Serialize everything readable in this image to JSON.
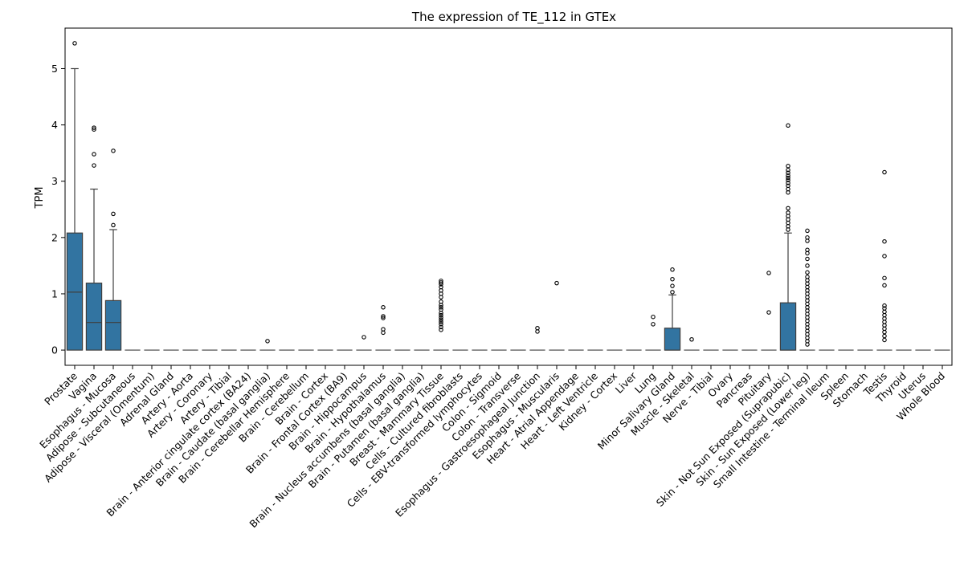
{
  "chart_data": {
    "type": "box",
    "title": "The expression of TE_112 in GTEx",
    "xlabel": "",
    "ylabel": "TPM",
    "ylim": [
      -0.27,
      5.72
    ],
    "yticks": [
      0,
      1,
      2,
      3,
      4,
      5
    ],
    "grid": false,
    "legend": "none",
    "box_color": "#3274a1",
    "categories": [
      "Prostate",
      "Vagina",
      "Esophagus - Mucosa",
      "Adipose - Subcutaneous",
      "Adipose - Visceral (Omentum)",
      "Adrenal Gland",
      "Artery - Aorta",
      "Artery - Coronary",
      "Artery - Tibial",
      "Brain - Anterior cingulate cortex (BA24)",
      "Brain - Caudate (basal ganglia)",
      "Brain - Cerebellar Hemisphere",
      "Brain - Cerebellum",
      "Brain - Cortex",
      "Brain - Frontal Cortex (BA9)",
      "Brain - Hippocampus",
      "Brain - Hypothalamus",
      "Brain - Nucleus accumbens (basal ganglia)",
      "Brain - Putamen (basal ganglia)",
      "Breast - Mammary Tissue",
      "Cells - Cultured fibroblasts",
      "Cells - EBV-transformed lymphocytes",
      "Colon - Sigmoid",
      "Colon - Transverse",
      "Esophagus - Gastroesophageal Junction",
      "Esophagus - Muscularis",
      "Heart - Atrial Appendage",
      "Heart - Left Ventricle",
      "Kidney - Cortex",
      "Liver",
      "Lung",
      "Minor Salivary Gland",
      "Muscle - Skeletal",
      "Nerve - Tibial",
      "Ovary",
      "Pancreas",
      "Pituitary",
      "Skin - Not Sun Exposed (Suprapubic)",
      "Skin - Sun Exposed (Lower leg)",
      "Small Intestine - Terminal Ileum",
      "Spleen",
      "Stomach",
      "Testis",
      "Thyroid",
      "Uterus",
      "Whole Blood"
    ],
    "boxes": [
      {
        "q1": 0,
        "median": 1.03,
        "q3": 2.08,
        "wlo": 0,
        "whi": 5.0,
        "outliers": [
          5.45
        ]
      },
      {
        "q1": 0,
        "median": 0.49,
        "q3": 1.19,
        "wlo": 0,
        "whi": 2.86,
        "outliers": [
          3.28,
          3.48,
          3.92,
          3.95
        ]
      },
      {
        "q1": 0,
        "median": 0.49,
        "q3": 0.88,
        "wlo": 0,
        "whi": 2.14,
        "outliers": [
          2.22,
          2.42,
          3.54
        ]
      },
      {
        "q1": 0,
        "median": 0,
        "q3": 0,
        "wlo": 0,
        "whi": 0,
        "outliers": []
      },
      {
        "q1": 0,
        "median": 0,
        "q3": 0,
        "wlo": 0,
        "whi": 0,
        "outliers": []
      },
      {
        "q1": 0,
        "median": 0,
        "q3": 0,
        "wlo": 0,
        "whi": 0,
        "outliers": []
      },
      {
        "q1": 0,
        "median": 0,
        "q3": 0,
        "wlo": 0,
        "whi": 0,
        "outliers": []
      },
      {
        "q1": 0,
        "median": 0,
        "q3": 0,
        "wlo": 0,
        "whi": 0,
        "outliers": []
      },
      {
        "q1": 0,
        "median": 0,
        "q3": 0,
        "wlo": 0,
        "whi": 0,
        "outliers": []
      },
      {
        "q1": 0,
        "median": 0,
        "q3": 0,
        "wlo": 0,
        "whi": 0,
        "outliers": []
      },
      {
        "q1": 0,
        "median": 0,
        "q3": 0,
        "wlo": 0,
        "whi": 0,
        "outliers": [
          0.16
        ]
      },
      {
        "q1": 0,
        "median": 0,
        "q3": 0,
        "wlo": 0,
        "whi": 0,
        "outliers": []
      },
      {
        "q1": 0,
        "median": 0,
        "q3": 0,
        "wlo": 0,
        "whi": 0,
        "outliers": []
      },
      {
        "q1": 0,
        "median": 0,
        "q3": 0,
        "wlo": 0,
        "whi": 0,
        "outliers": []
      },
      {
        "q1": 0,
        "median": 0,
        "q3": 0,
        "wlo": 0,
        "whi": 0,
        "outliers": []
      },
      {
        "q1": 0,
        "median": 0,
        "q3": 0,
        "wlo": 0,
        "whi": 0,
        "outliers": [
          0.23
        ]
      },
      {
        "q1": 0,
        "median": 0,
        "q3": 0,
        "wlo": 0,
        "whi": 0,
        "outliers": [
          0.31,
          0.37,
          0.57,
          0.6,
          0.76
        ]
      },
      {
        "q1": 0,
        "median": 0,
        "q3": 0,
        "wlo": 0,
        "whi": 0,
        "outliers": []
      },
      {
        "q1": 0,
        "median": 0,
        "q3": 0,
        "wlo": 0,
        "whi": 0,
        "outliers": []
      },
      {
        "q1": 0,
        "median": 0,
        "q3": 0,
        "wlo": 0,
        "whi": 0,
        "outliers": [
          0.36,
          0.41,
          0.46,
          0.5,
          0.54,
          0.58,
          0.62,
          0.66,
          0.72,
          0.76,
          0.8,
          0.86,
          0.94,
          1.0,
          1.06,
          1.12,
          1.17,
          1.2,
          1.23
        ]
      },
      {
        "q1": 0,
        "median": 0,
        "q3": 0,
        "wlo": 0,
        "whi": 0,
        "outliers": []
      },
      {
        "q1": 0,
        "median": 0,
        "q3": 0,
        "wlo": 0,
        "whi": 0,
        "outliers": []
      },
      {
        "q1": 0,
        "median": 0,
        "q3": 0,
        "wlo": 0,
        "whi": 0,
        "outliers": []
      },
      {
        "q1": 0,
        "median": 0,
        "q3": 0,
        "wlo": 0,
        "whi": 0,
        "outliers": []
      },
      {
        "q1": 0,
        "median": 0,
        "q3": 0,
        "wlo": 0,
        "whi": 0,
        "outliers": [
          0.33,
          0.39
        ]
      },
      {
        "q1": 0,
        "median": 0,
        "q3": 0,
        "wlo": 0,
        "whi": 0,
        "outliers": [
          1.19
        ]
      },
      {
        "q1": 0,
        "median": 0,
        "q3": 0,
        "wlo": 0,
        "whi": 0,
        "outliers": []
      },
      {
        "q1": 0,
        "median": 0,
        "q3": 0,
        "wlo": 0,
        "whi": 0,
        "outliers": []
      },
      {
        "q1": 0,
        "median": 0,
        "q3": 0,
        "wlo": 0,
        "whi": 0,
        "outliers": []
      },
      {
        "q1": 0,
        "median": 0,
        "q3": 0,
        "wlo": 0,
        "whi": 0,
        "outliers": []
      },
      {
        "q1": 0,
        "median": 0,
        "q3": 0,
        "wlo": 0,
        "whi": 0,
        "outliers": [
          0.46,
          0.59
        ]
      },
      {
        "q1": 0,
        "median": 0,
        "q3": 0.39,
        "wlo": 0,
        "whi": 0.98,
        "outliers": [
          1.03,
          1.14,
          1.26,
          1.43
        ]
      },
      {
        "q1": 0,
        "median": 0,
        "q3": 0,
        "wlo": 0,
        "whi": 0,
        "outliers": [
          0.19
        ]
      },
      {
        "q1": 0,
        "median": 0,
        "q3": 0,
        "wlo": 0,
        "whi": 0,
        "outliers": []
      },
      {
        "q1": 0,
        "median": 0,
        "q3": 0,
        "wlo": 0,
        "whi": 0,
        "outliers": []
      },
      {
        "q1": 0,
        "median": 0,
        "q3": 0,
        "wlo": 0,
        "whi": 0,
        "outliers": []
      },
      {
        "q1": 0,
        "median": 0,
        "q3": 0,
        "wlo": 0,
        "whi": 0,
        "outliers": [
          0.67,
          1.37
        ]
      },
      {
        "q1": 0,
        "median": 0,
        "q3": 0.84,
        "wlo": 0,
        "whi": 2.08,
        "outliers": [
          2.14,
          2.2,
          2.26,
          2.32,
          2.38,
          2.44,
          2.52,
          2.8,
          2.86,
          2.92,
          2.97,
          3.02,
          3.06,
          3.1,
          3.15,
          3.2,
          3.27,
          3.99
        ]
      },
      {
        "q1": 0,
        "median": 0,
        "q3": 0,
        "wlo": 0,
        "whi": 0,
        "outliers": [
          0.1,
          0.16,
          0.22,
          0.28,
          0.34,
          0.4,
          0.46,
          0.52,
          0.58,
          0.64,
          0.7,
          0.76,
          0.82,
          0.88,
          0.94,
          1.0,
          1.06,
          1.12,
          1.18,
          1.24,
          1.3,
          1.38,
          1.5,
          1.62,
          1.72,
          1.78,
          1.94,
          2.0,
          2.12
        ]
      },
      {
        "q1": 0,
        "median": 0,
        "q3": 0,
        "wlo": 0,
        "whi": 0,
        "outliers": []
      },
      {
        "q1": 0,
        "median": 0,
        "q3": 0,
        "wlo": 0,
        "whi": 0,
        "outliers": []
      },
      {
        "q1": 0,
        "median": 0,
        "q3": 0,
        "wlo": 0,
        "whi": 0,
        "outliers": []
      },
      {
        "q1": 0,
        "median": 0,
        "q3": 0,
        "wlo": 0,
        "whi": 0,
        "outliers": [
          0.18,
          0.25,
          0.32,
          0.38,
          0.44,
          0.5,
          0.56,
          0.62,
          0.68,
          0.74,
          0.79,
          1.15,
          1.28,
          1.67,
          1.93,
          3.16
        ]
      },
      {
        "q1": 0,
        "median": 0,
        "q3": 0,
        "wlo": 0,
        "whi": 0,
        "outliers": []
      },
      {
        "q1": 0,
        "median": 0,
        "q3": 0,
        "wlo": 0,
        "whi": 0,
        "outliers": []
      },
      {
        "q1": 0,
        "median": 0,
        "q3": 0,
        "wlo": 0,
        "whi": 0,
        "outliers": []
      }
    ]
  }
}
